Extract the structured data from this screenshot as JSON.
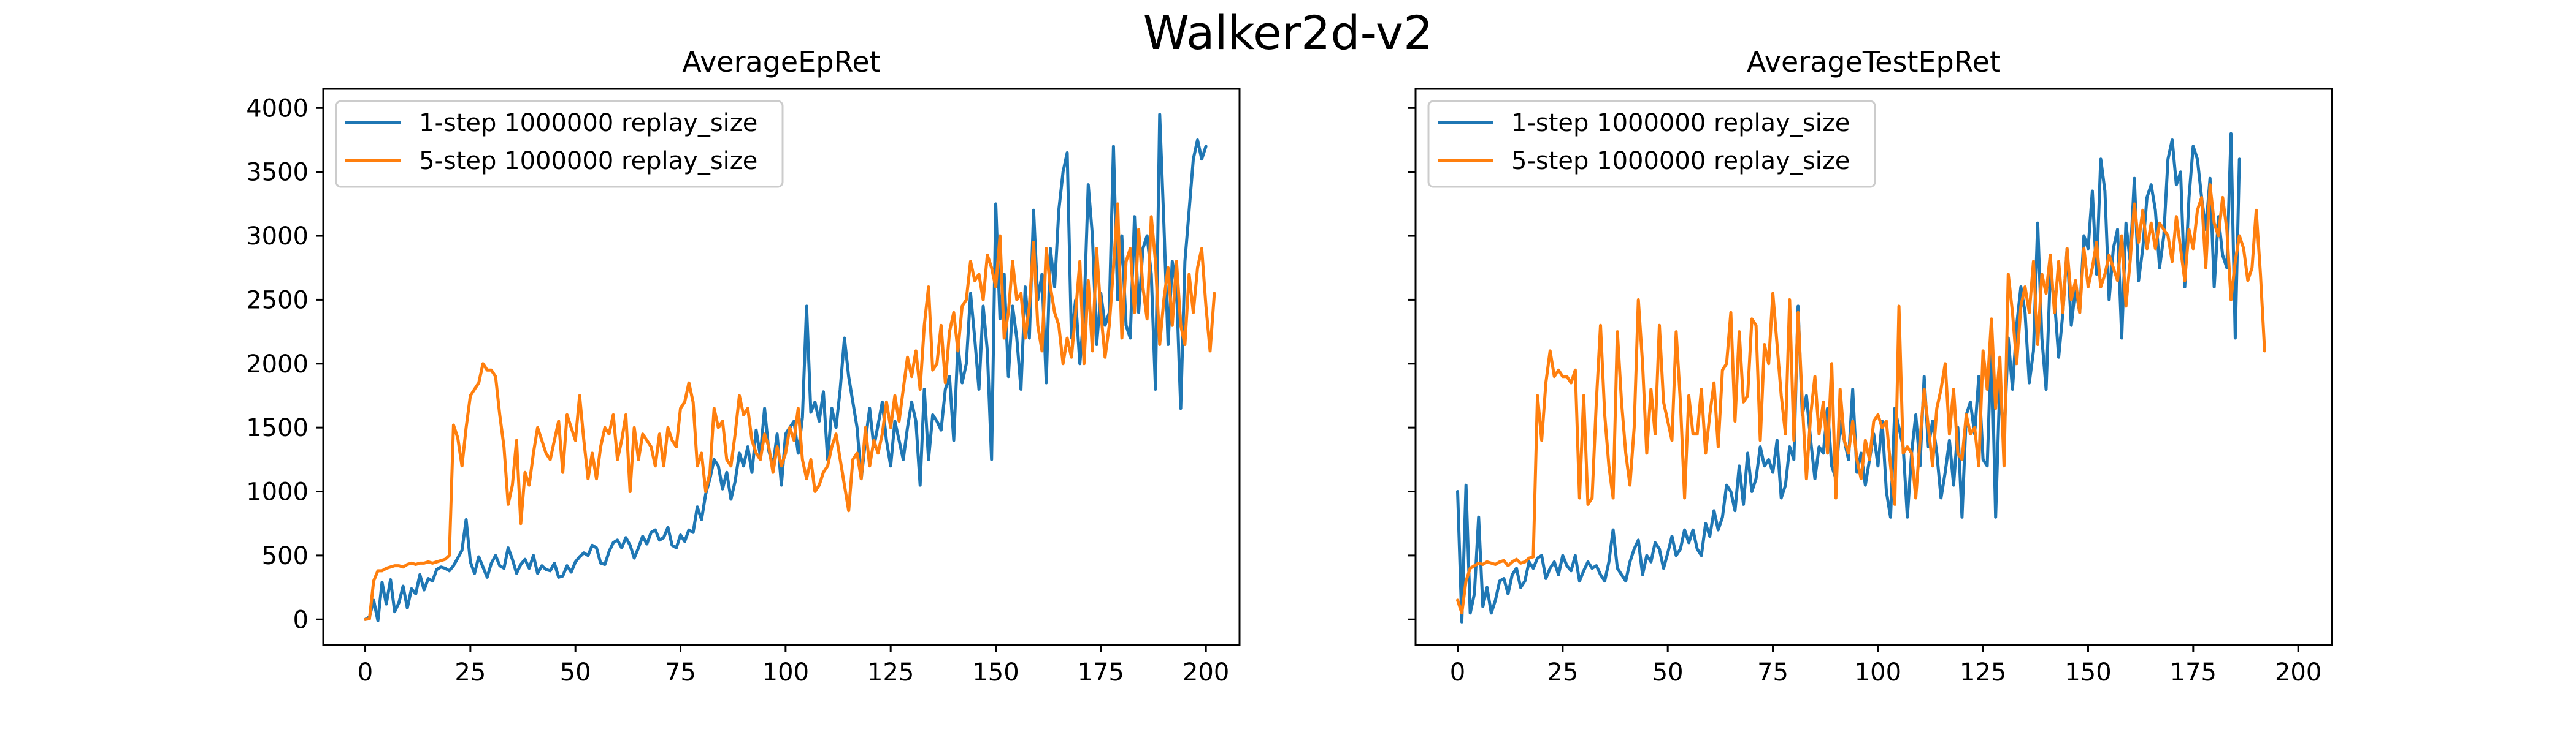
{
  "figure": {
    "title": "Walker2d-v2"
  },
  "chart_data": [
    {
      "type": "line",
      "title": "AverageEpRet",
      "xlabel": "",
      "ylabel": "",
      "xlim": [
        -10,
        208
      ],
      "ylim": [
        -200,
        4150
      ],
      "xticks": [
        0,
        25,
        50,
        75,
        100,
        125,
        150,
        175,
        200
      ],
      "yticks": [
        0,
        500,
        1000,
        1500,
        2000,
        2500,
        3000,
        3500,
        4000
      ],
      "grid": false,
      "legend": "top-left",
      "series": [
        {
          "name": "1-step 1000000 replay_size",
          "color": "#1f77b4",
          "values": [
            0,
            20,
            150,
            -10,
            290,
            120,
            310,
            60,
            130,
            260,
            90,
            240,
            200,
            350,
            230,
            320,
            300,
            390,
            410,
            400,
            380,
            420,
            480,
            540,
            780,
            450,
            360,
            490,
            410,
            330,
            440,
            500,
            420,
            400,
            560,
            470,
            360,
            430,
            470,
            400,
            500,
            360,
            420,
            390,
            380,
            440,
            330,
            340,
            420,
            370,
            450,
            490,
            520,
            500,
            580,
            560,
            440,
            430,
            530,
            600,
            620,
            560,
            640,
            580,
            480,
            560,
            650,
            590,
            680,
            700,
            620,
            640,
            720,
            580,
            560,
            660,
            610,
            700,
            680,
            880,
            780,
            980,
            1100,
            1250,
            1200,
            1020,
            1150,
            940,
            1080,
            1300,
            1200,
            1350,
            1150,
            1480,
            1280,
            1650,
            1320,
            1200,
            1450,
            1050,
            1450,
            1500,
            1550,
            1300,
            1580,
            2450,
            1620,
            1700,
            1550,
            1780,
            1250,
            1650,
            1500,
            1800,
            2200,
            1900,
            1700,
            1500,
            1100,
            1400,
            1650,
            1350,
            1520,
            1700,
            1400,
            1200,
            1550,
            1400,
            1250,
            1500,
            1700,
            1550,
            1050,
            1800,
            1250,
            1600,
            1550,
            1480,
            1800,
            1900,
            1400,
            2150,
            1850,
            2000,
            2550,
            2200,
            1800,
            2450,
            2100,
            1250,
            3250,
            2350,
            2700,
            1900,
            2450,
            2200,
            1800,
            2600,
            2200,
            3200,
            2500,
            2700,
            1850,
            2900,
            2600,
            3200,
            3500,
            3650,
            2200,
            2500,
            2000,
            2400,
            3400,
            3000,
            2150,
            2550,
            2300,
            2400,
            3700,
            2500,
            3000,
            2300,
            2200,
            3150,
            2400,
            2900,
            3000,
            2700,
            1800,
            3950,
            3100,
            2150,
            2800,
            2600,
            1650,
            2800,
            3200,
            3600,
            3750,
            3600,
            3700
          ]
        },
        {
          "name": "5-step 1000000 replay_size",
          "color": "#ff7f0e",
          "values": [
            0,
            5,
            300,
            380,
            380,
            400,
            410,
            420,
            420,
            410,
            430,
            440,
            430,
            440,
            440,
            450,
            440,
            450,
            460,
            470,
            500,
            1520,
            1420,
            1200,
            1500,
            1750,
            1800,
            1850,
            2000,
            1950,
            1950,
            1900,
            1600,
            1350,
            900,
            1050,
            1400,
            750,
            1150,
            1050,
            1300,
            1500,
            1400,
            1300,
            1250,
            1400,
            1550,
            1150,
            1600,
            1500,
            1400,
            1750,
            1400,
            1100,
            1300,
            1100,
            1350,
            1500,
            1450,
            1600,
            1250,
            1400,
            1600,
            1000,
            1500,
            1250,
            1450,
            1400,
            1350,
            1200,
            1450,
            1200,
            1500,
            1400,
            1350,
            1650,
            1700,
            1850,
            1700,
            1200,
            1300,
            1000,
            1150,
            1650,
            1500,
            1550,
            1250,
            1200,
            1450,
            1750,
            1600,
            1650,
            1400,
            1300,
            1250,
            1450,
            1350,
            1150,
            1350,
            1200,
            1300,
            1500,
            1400,
            1650,
            1250,
            1100,
            1250,
            1000,
            1050,
            1150,
            1200,
            1350,
            1450,
            1250,
            1050,
            850,
            1250,
            1300,
            1100,
            1500,
            1200,
            1400,
            1300,
            1450,
            1700,
            1500,
            1750,
            1550,
            1800,
            2050,
            1900,
            2100,
            1800,
            2300,
            2600,
            1950,
            2000,
            2300,
            1850,
            2250,
            2400,
            2100,
            2450,
            2500,
            2800,
            2650,
            2700,
            2500,
            2850,
            2750,
            2600,
            3000,
            2200,
            2400,
            2800,
            2500,
            2550,
            2200,
            2450,
            2950,
            2300,
            2100,
            2900,
            2600,
            2400,
            2300,
            2000,
            2200,
            2050,
            2400,
            2800,
            2000,
            2650,
            2100,
            2900,
            2400,
            2050,
            2300,
            2750,
            3250,
            2200,
            2800,
            2900,
            2400,
            3050,
            2600,
            2350,
            3150,
            2800,
            2150,
            2500,
            2750,
            2300,
            2800,
            2300,
            2150,
            2700,
            2400,
            2750,
            2900,
            2450,
            2100,
            2550
          ]
        }
      ]
    },
    {
      "type": "line",
      "title": "AverageTestEpRet",
      "xlabel": "",
      "ylabel": "",
      "xlim": [
        -10,
        208
      ],
      "ylim": [
        -200,
        4150
      ],
      "xticks": [
        0,
        25,
        50,
        75,
        100,
        125,
        150,
        175,
        200
      ],
      "yticks": [
        0,
        500,
        1000,
        1500,
        2000,
        2500,
        3000,
        3500,
        4000
      ],
      "grid": false,
      "legend": "top-left",
      "series": [
        {
          "name": "1-step 1000000 replay_size",
          "color": "#1f77b4",
          "values": [
            1000,
            -20,
            1050,
            50,
            200,
            800,
            100,
            250,
            50,
            150,
            300,
            320,
            200,
            350,
            400,
            250,
            300,
            450,
            400,
            480,
            500,
            320,
            400,
            450,
            350,
            500,
            420,
            380,
            500,
            300,
            380,
            450,
            400,
            420,
            350,
            300,
            450,
            700,
            400,
            350,
            300,
            450,
            550,
            620,
            350,
            500,
            450,
            600,
            550,
            400,
            520,
            650,
            500,
            550,
            700,
            600,
            700,
            550,
            500,
            750,
            650,
            850,
            700,
            800,
            1050,
            1000,
            850,
            1200,
            900,
            1300,
            1000,
            1100,
            1350,
            1200,
            1250,
            1150,
            1400,
            950,
            1050,
            1350,
            1250,
            2450,
            1600,
            1750,
            1400,
            1100,
            1350,
            1300,
            1650,
            1200,
            1100,
            1550,
            1400,
            1250,
            1800,
            1150,
            1300,
            1050,
            1250,
            1450,
            1200,
            1550,
            1000,
            800,
            1650,
            1500,
            1350,
            800,
            1300,
            1600,
            1200,
            1900,
            1350,
            1550,
            1300,
            950,
            1150,
            1400,
            1050,
            1500,
            800,
            1600,
            1700,
            1450,
            1900,
            1250,
            1200,
            2200,
            800,
            1850,
            1400,
            2200,
            1800,
            2300,
            2600,
            2400,
            1850,
            2100,
            3100,
            2200,
            1800,
            2700,
            2500,
            2050,
            2400,
            2900,
            2300,
            2600,
            2400,
            3000,
            2900,
            3350,
            2700,
            3600,
            3350,
            2500,
            2900,
            3050,
            2200,
            3100,
            2800,
            3450,
            2650,
            2900,
            3300,
            3400,
            3200,
            2750,
            3000,
            3600,
            3750,
            3400,
            3500,
            2600,
            3300,
            3700,
            3600,
            3300,
            3050,
            3450,
            2600,
            3150,
            2850,
            2750,
            3800,
            2200,
            3600
          ]
        },
        {
          "name": "5-step 1000000 replay_size",
          "color": "#ff7f0e",
          "values": [
            150,
            50,
            300,
            400,
            420,
            440,
            430,
            450,
            440,
            430,
            450,
            460,
            420,
            450,
            470,
            440,
            450,
            480,
            490,
            1750,
            1400,
            1850,
            2100,
            1900,
            1950,
            1900,
            1900,
            1850,
            1950,
            950,
            1750,
            900,
            950,
            1700,
            2300,
            1600,
            1200,
            950,
            2250,
            1700,
            1300,
            1050,
            1500,
            2500,
            2000,
            1300,
            1800,
            1450,
            2300,
            1700,
            1550,
            1400,
            2250,
            1700,
            950,
            1750,
            1450,
            1450,
            1800,
            1300,
            1600,
            1850,
            1350,
            1950,
            2000,
            2400,
            1550,
            2250,
            1700,
            1750,
            2350,
            2300,
            1400,
            2150,
            2000,
            2550,
            2150,
            1750,
            1450,
            2500,
            1400,
            2400,
            1700,
            1100,
            1600,
            1900,
            1450,
            1700,
            1300,
            2000,
            950,
            1800,
            1400,
            1300,
            1550,
            1250,
            1100,
            1400,
            1250,
            1550,
            1600,
            1500,
            1550,
            1200,
            900,
            2450,
            1300,
            1350,
            1300,
            950,
            1400,
            1800,
            1500,
            1200,
            1650,
            1800,
            2000,
            1450,
            1800,
            1300,
            1250,
            1600,
            1450,
            1500,
            1200,
            2100,
            1800,
            2350,
            1650,
            2050,
            1200,
            2700,
            2400,
            2000,
            2450,
            2600,
            2400,
            2800,
            2150,
            2700,
            2550,
            2850,
            2400,
            2800,
            2400,
            2900,
            2500,
            2650,
            2400,
            2900,
            2600,
            2750,
            2950,
            2600,
            2700,
            2850,
            2750,
            2650,
            3000,
            2450,
            2800,
            3250,
            2950,
            3200,
            2900,
            3100,
            2900,
            3100,
            3050,
            3000,
            2800,
            3150,
            2900,
            2650,
            3050,
            2900,
            3200,
            3300,
            2750,
            3400,
            3100,
            3000,
            3300,
            3050,
            2500,
            2800,
            3000,
            2900,
            2650,
            2750,
            3200,
            2700,
            2100
          ]
        }
      ]
    }
  ]
}
